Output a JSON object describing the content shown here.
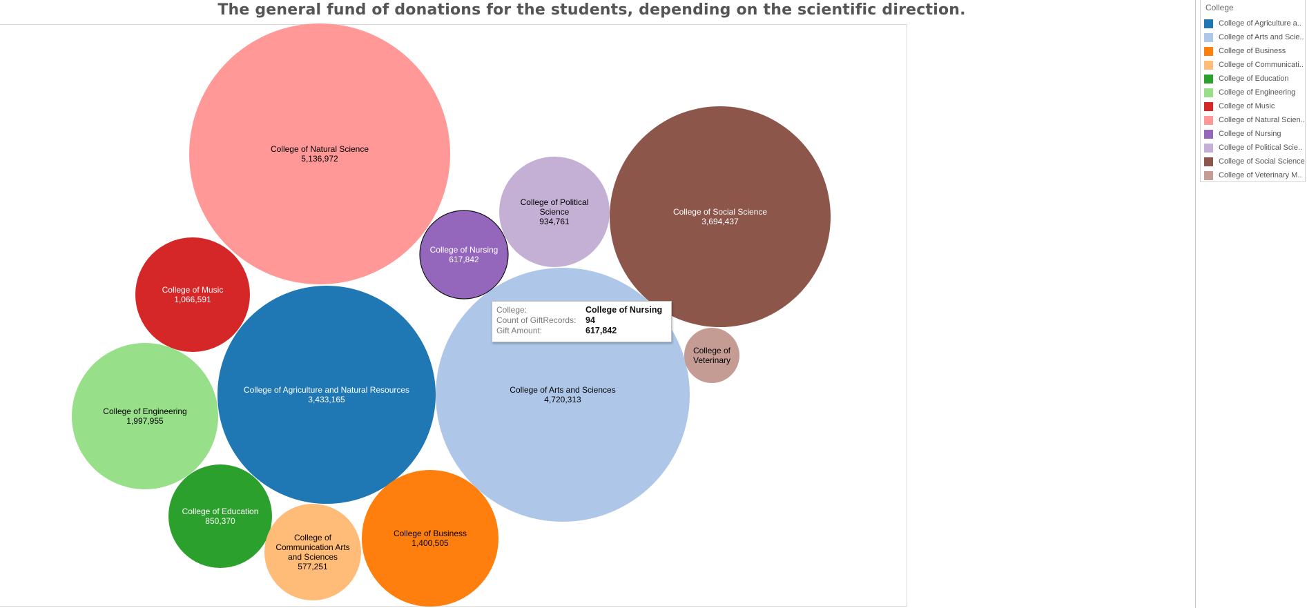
{
  "title": "The general fund of donations for the students, depending on the scientific direction.",
  "legend": {
    "title": "College",
    "items": [
      {
        "label": "College of Agriculture a..",
        "color": "#1f77b4"
      },
      {
        "label": "College of Arts and Scie..",
        "color": "#aec7e8"
      },
      {
        "label": "College of Business",
        "color": "#ff7f0e"
      },
      {
        "label": "College of Communicati..",
        "color": "#ffbb78"
      },
      {
        "label": "College of Education",
        "color": "#2ca02c"
      },
      {
        "label": "College of Engineering",
        "color": "#98df8a"
      },
      {
        "label": "College of Music",
        "color": "#d62728"
      },
      {
        "label": "College of Natural Scien..",
        "color": "#ff9896"
      },
      {
        "label": "College of Nursing",
        "color": "#9467bd"
      },
      {
        "label": "College of Political Scie..",
        "color": "#c5b0d5"
      },
      {
        "label": "College of Social Science",
        "color": "#8c564b"
      },
      {
        "label": "College of Veterinary M..",
        "color": "#c49c94"
      }
    ]
  },
  "tooltip": {
    "rows": [
      {
        "key": "College:",
        "value": "College of Nursing"
      },
      {
        "key": "Count of GiftRecords:",
        "value": "94"
      },
      {
        "key": "Gift Amount:",
        "value": "617,842"
      }
    ]
  },
  "chart_data": {
    "type": "packed-bubble",
    "title": "The general fund of donations for the students, depending on the scientific direction.",
    "legend_title": "College",
    "legend_position": "right",
    "value_label": "Gift Amount",
    "series": [
      {
        "category": "College of Natural Science",
        "label_lines": [
          "College of Natural Science"
        ],
        "value": 5136972,
        "value_label": "5,136,972",
        "color": "#ff9896",
        "text_color": "#000000"
      },
      {
        "category": "College of Arts and Sciences",
        "label_lines": [
          "College of Arts and Sciences"
        ],
        "value": 4720313,
        "value_label": "4,720,313",
        "color": "#aec7e8",
        "text_color": "#000000"
      },
      {
        "category": "College of Social Science",
        "label_lines": [
          "College of Social Science"
        ],
        "value": 3694437,
        "value_label": "3,694,437",
        "color": "#8c564b",
        "text_color": "#ffffff"
      },
      {
        "category": "College of Agriculture and Natural Resources",
        "label_lines": [
          "College of Agriculture and Natural Resources"
        ],
        "value": 3433165,
        "value_label": "3,433,165",
        "color": "#1f77b4",
        "text_color": "#ffffff"
      },
      {
        "category": "College of Engineering",
        "label_lines": [
          "College of Engineering"
        ],
        "value": 1997955,
        "value_label": "1,997,955",
        "color": "#98df8a",
        "text_color": "#000000"
      },
      {
        "category": "College of Business",
        "label_lines": [
          "College of Business"
        ],
        "value": 1400505,
        "value_label": "1,400,505",
        "color": "#ff7f0e",
        "text_color": "#000000"
      },
      {
        "category": "College of Music",
        "label_lines": [
          "College of Music"
        ],
        "value": 1066591,
        "value_label": "1,066,591",
        "color": "#d62728",
        "text_color": "#ffffff"
      },
      {
        "category": "College of Political Science",
        "label_lines": [
          "College of Political",
          "Science"
        ],
        "value": 934761,
        "value_label": "934,761",
        "color": "#c5b0d5",
        "text_color": "#000000"
      },
      {
        "category": "College of Education",
        "label_lines": [
          "College of Education"
        ],
        "value": 850370,
        "value_label": "850,370",
        "color": "#2ca02c",
        "text_color": "#ffffff"
      },
      {
        "category": "College of Nursing",
        "label_lines": [
          "College of Nursing"
        ],
        "value": 617842,
        "value_label": "617,842",
        "color": "#9467bd",
        "text_color": "#ffffff",
        "highlighted": true
      },
      {
        "category": "College of Communication Arts and Sciences",
        "label_lines": [
          "College of",
          "Communication Arts",
          "and Sciences"
        ],
        "value": 577251,
        "value_label": "577,251",
        "color": "#ffbb78",
        "text_color": "#000000"
      },
      {
        "category": "College of Veterinary Medicine",
        "label_lines": [
          "College of",
          "Veterinary"
        ],
        "value": null,
        "value_label": "",
        "color": "#c49c94",
        "text_color": "#000000"
      }
    ]
  }
}
